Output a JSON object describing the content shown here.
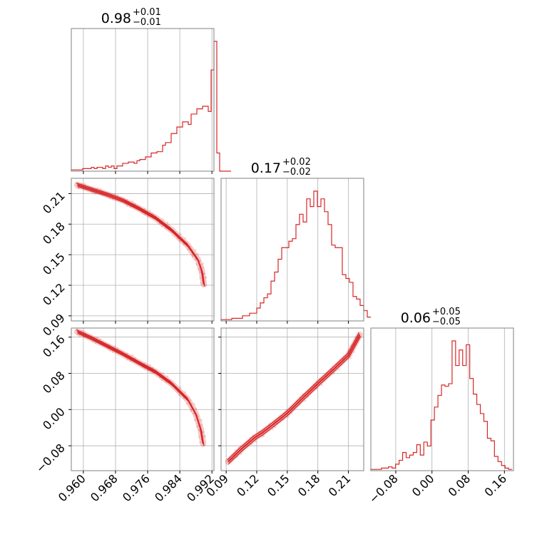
{
  "colors": {
    "series": "#d62728",
    "grid": "#b0b0b0",
    "frame": "#808080"
  },
  "chart_data": {
    "type": "corner",
    "parameters": 3,
    "grid": true,
    "titles": [
      {
        "median": "0.98",
        "plus": "+0.01",
        "minus": "−0.01"
      },
      {
        "median": "0.17",
        "plus": "+0.02",
        "minus": "−0.02"
      },
      {
        "median": "0.06",
        "plus": "+0.05",
        "minus": "−0.05"
      }
    ],
    "axes": [
      {
        "range": [
          0.957,
          0.9925
        ],
        "ticks": [
          0.96,
          0.968,
          0.976,
          0.984,
          0.992
        ],
        "tick_labels": [
          "0.960",
          "0.968",
          "0.976",
          "0.984",
          "0.992"
        ]
      },
      {
        "range": [
          0.085,
          0.225
        ],
        "ticks": [
          0.09,
          0.12,
          0.15,
          0.18,
          0.21
        ],
        "tick_labels": [
          "0.09",
          "0.12",
          "0.15",
          "0.18",
          "0.21"
        ]
      },
      {
        "range": [
          -0.135,
          0.18
        ],
        "ticks": [
          -0.08,
          0.0,
          0.08,
          0.16
        ],
        "tick_labels": [
          "−0.08",
          "0.00",
          "0.08",
          "0.16"
        ]
      }
    ],
    "histograms": [
      {
        "param": 0,
        "bin_start": 0.957,
        "bin_width": 0.00071,
        "counts": [
          1,
          1,
          1,
          1,
          2,
          2,
          2,
          3,
          2,
          3,
          3,
          2,
          4,
          3,
          4,
          2,
          4,
          4,
          6,
          6,
          7,
          7,
          6,
          8,
          9,
          9,
          11,
          11,
          14,
          14,
          15,
          15,
          20,
          22,
          22,
          29,
          29,
          34,
          34,
          38,
          38,
          36,
          44,
          44,
          48,
          48,
          50,
          50,
          46,
          78,
          100,
          14,
          0,
          0,
          0,
          0
        ]
      },
      {
        "param": 1,
        "bin_start": 0.085,
        "bin_width": 0.0035,
        "counts": [
          1,
          1,
          1,
          2,
          2,
          2,
          4,
          4,
          6,
          6,
          10,
          14,
          18,
          21,
          31,
          38,
          48,
          57,
          57,
          62,
          64,
          75,
          83,
          77,
          95,
          89,
          101,
          89,
          95,
          85,
          75,
          59,
          57,
          57,
          36,
          33,
          30,
          19,
          17,
          12,
          8,
          3
        ]
      },
      {
        "param": 2,
        "bin_start": -0.135,
        "bin_width": 0.0078,
        "counts": [
          1,
          1,
          1,
          2,
          2,
          3,
          2,
          5,
          8,
          14,
          10,
          12,
          14,
          20,
          12,
          22,
          19,
          39,
          49,
          58,
          66,
          65,
          67,
          100,
          81,
          93,
          81,
          97,
          71,
          59,
          51,
          44,
          38,
          25,
          23,
          11,
          7,
          4,
          2,
          1
        ]
      }
    ],
    "curves": [
      {
        "x_param": 0,
        "y_param": 1,
        "x": [
          0.9585,
          0.962,
          0.966,
          0.97,
          0.974,
          0.978,
          0.982,
          0.986,
          0.9885,
          0.9895,
          0.99
        ],
        "y": [
          0.2185,
          0.214,
          0.209,
          0.203,
          0.195,
          0.186,
          0.174,
          0.159,
          0.145,
          0.134,
          0.121
        ]
      },
      {
        "x_param": 0,
        "y_param": 2,
        "x": [
          0.9585,
          0.962,
          0.966,
          0.97,
          0.974,
          0.978,
          0.982,
          0.986,
          0.988,
          0.9892,
          0.9898
        ],
        "y": [
          0.172,
          0.158,
          0.14,
          0.122,
          0.102,
          0.083,
          0.057,
          0.022,
          -0.01,
          -0.043,
          -0.075
        ]
      },
      {
        "x_param": 1,
        "y_param": 2,
        "x": [
          0.092,
          0.105,
          0.118,
          0.125,
          0.135,
          0.15,
          0.165,
          0.18,
          0.195,
          0.21,
          0.221
        ],
        "y": [
          -0.115,
          -0.087,
          -0.062,
          -0.052,
          -0.035,
          -0.008,
          0.025,
          0.057,
          0.088,
          0.12,
          0.165
        ]
      }
    ]
  }
}
